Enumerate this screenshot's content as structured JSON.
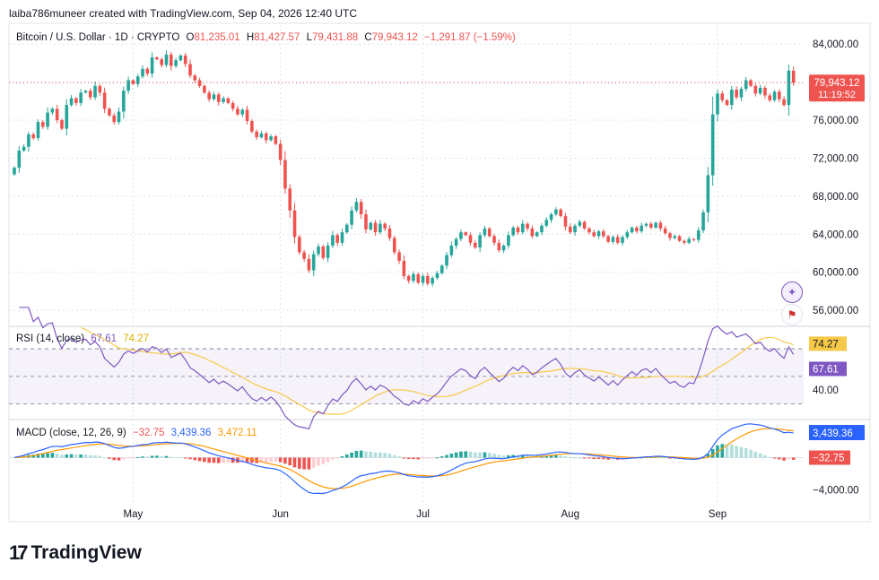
{
  "header": {
    "created_by": "laiba786muneer created with TradingView.com, Sep 04, 2026 12:40 UTC"
  },
  "colors": {
    "up": "#26a69a",
    "down": "#ef5350",
    "rsi": "#7e57c2",
    "rsi_ma": "#f7c948",
    "macd": "#2962ff",
    "signal": "#ff9800",
    "grid": "#e0e3eb",
    "text": "#131722"
  },
  "legend": {
    "symbol": "Bitcoin / U.S. Dollar · 1D · CRYPTO",
    "open_label": "O",
    "open": "81,235.01",
    "high_label": "H",
    "high": "81,427.57",
    "low_label": "L",
    "low": "79,431.88",
    "close_label": "C",
    "close": "79,943.12",
    "change": "−1,291.87 (−1.59%)"
  },
  "price_label": {
    "value": "79,943.12",
    "countdown": "11:19:52"
  },
  "rsi_legend": {
    "name": "RSI (14, close)",
    "value": "67.61",
    "ma_value": "74.27"
  },
  "rsi_axis": {
    "label": "40.00"
  },
  "macd_legend": {
    "name": "MACD (close, 12, 26, 9)",
    "hist": "−32.75",
    "macd": "3,439.36",
    "signal": "3,472.11"
  },
  "macd_axis": {
    "label": "−4,000.00"
  },
  "brand": {
    "name": "TradingView"
  },
  "chart_data": {
    "type": "candlestick",
    "title": "Bitcoin / U.S. Dollar · 1D · CRYPTO",
    "start": "2026-04-06",
    "x_labels": [
      {
        "label": "May",
        "date": "2026-05-01"
      },
      {
        "label": "Jun",
        "date": "2026-06-01"
      },
      {
        "label": "Jul",
        "date": "2026-07-01"
      },
      {
        "label": "Aug",
        "date": "2026-08-01"
      },
      {
        "label": "Sep",
        "date": "2026-09-01"
      }
    ],
    "y_ticks": [
      {
        "value": 56000,
        "label": "56,000.00"
      },
      {
        "value": 60000,
        "label": "60,000.00"
      },
      {
        "value": 64000,
        "label": "64,000.00"
      },
      {
        "value": 68000,
        "label": "68,000.00"
      },
      {
        "value": 72000,
        "label": "72,000.00"
      },
      {
        "value": 76000,
        "label": "76,000.00"
      },
      {
        "value": 80000,
        "label": "80,000.00"
      },
      {
        "value": 84000,
        "label": "84,000.00"
      }
    ],
    "ylim": [
      54500,
      86000
    ],
    "close": [
      71000,
      72800,
      73200,
      74500,
      74100,
      75800,
      75300,
      76800,
      77200,
      76000,
      75100,
      77600,
      78300,
      77800,
      78900,
      79100,
      78400,
      79600,
      78900,
      77200,
      76500,
      75800,
      76900,
      79100,
      80200,
      79800,
      80600,
      81400,
      80900,
      82600,
      82400,
      81800,
      82900,
      81700,
      82300,
      82800,
      81900,
      80700,
      80200,
      79600,
      78900,
      78200,
      78700,
      77900,
      78300,
      77800,
      77200,
      76600,
      77100,
      75900,
      74800,
      74200,
      74600,
      73900,
      74300,
      73500,
      71800,
      68800,
      66500,
      63700,
      62100,
      61400,
      60200,
      61900,
      62700,
      61500,
      62800,
      63900,
      63100,
      64200,
      65000,
      66500,
      67400,
      66100,
      64500,
      65200,
      64200,
      65100,
      64600,
      63600,
      62100,
      61200,
      59600,
      59100,
      59800,
      58900,
      59600,
      58800,
      59400,
      59900,
      60700,
      61800,
      62800,
      63500,
      64200,
      63900,
      63100,
      62600,
      63900,
      64600,
      63800,
      63100,
      62300,
      62800,
      63900,
      64700,
      64200,
      65100,
      64600,
      63800,
      64200,
      64900,
      65500,
      66100,
      66600,
      65900,
      64800,
      64200,
      64900,
      65300,
      64600,
      64200,
      63800,
      64300,
      63800,
      63200,
      63700,
      63100,
      63700,
      64200,
      64700,
      64300,
      64900,
      65100,
      64700,
      65200,
      64600,
      64100,
      63600,
      63800,
      63300,
      63100,
      63500,
      63400,
      64400,
      66300,
      70200,
      76600,
      78800,
      78100,
      77600,
      79200,
      78400,
      79300,
      80200,
      79600,
      78800,
      79400,
      78600,
      78100,
      79000,
      78200,
      77600,
      81200,
      79943
    ],
    "range": [
      68000,
      80000
    ],
    "rsi_ylim": [
      20,
      85
    ],
    "rsi_ticks": [
      {
        "value": 40,
        "label": "40.00"
      }
    ],
    "rsi_bands": {
      "upper": 70,
      "mid": 50,
      "lower": 30
    },
    "macd_ylim": [
      -5500,
      4500
    ],
    "macd_ticks": [
      {
        "value": -4000,
        "label": "−4,000.00"
      }
    ]
  }
}
